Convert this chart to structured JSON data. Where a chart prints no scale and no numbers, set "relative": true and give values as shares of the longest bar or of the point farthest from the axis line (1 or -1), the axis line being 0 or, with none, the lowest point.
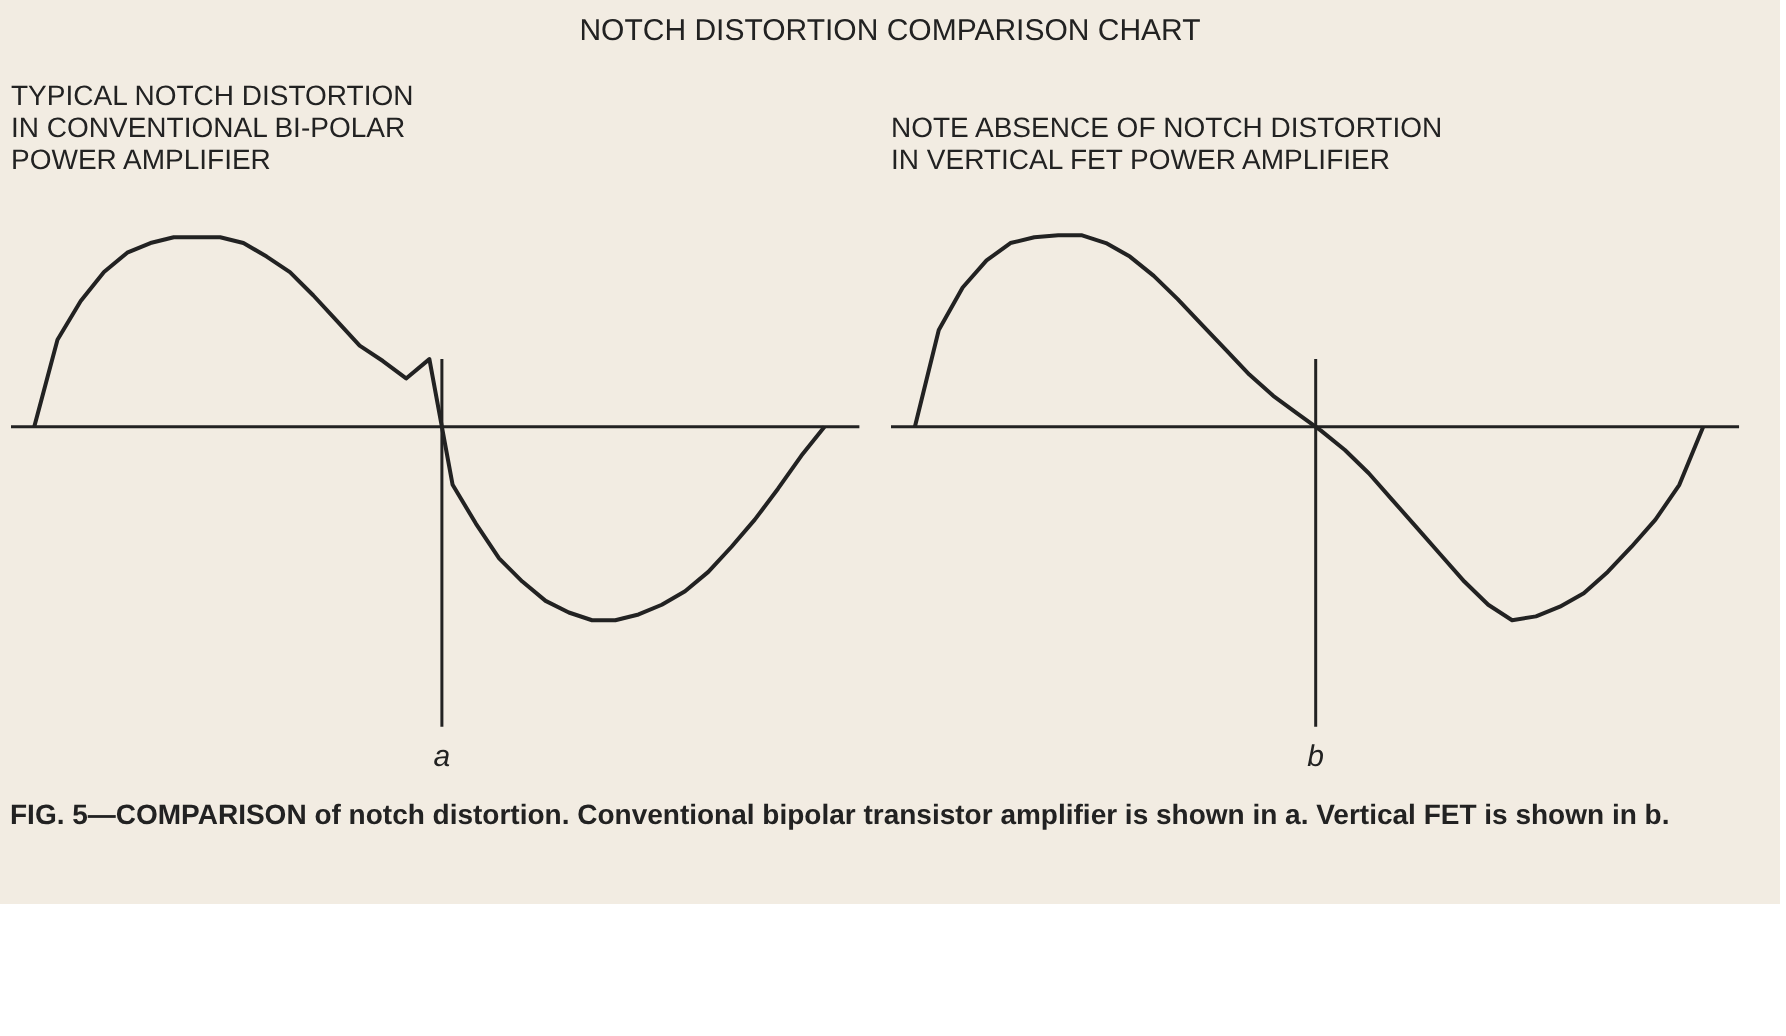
{
  "chart_data": [
    {
      "type": "line",
      "relative": true,
      "title": "NOTCH DISTORTION COMPARISON CHART",
      "subtitle": "TYPICAL NOTCH DISTORTION\nIN CONVENTIONAL BI-POLAR\nPOWER AMPLIFIER",
      "categories": [
        null,
        null,
        null,
        null,
        null,
        null,
        null,
        null,
        null,
        null,
        null,
        null,
        null,
        null,
        null,
        null,
        null,
        null,
        null,
        null,
        null,
        null,
        null,
        null,
        null,
        null,
        null,
        null,
        null,
        null,
        null,
        null,
        null,
        null,
        null
      ],
      "series": [
        {
          "color": "#222222",
          "values": [
            0,
            0.45,
            0.65,
            0.8,
            0.9,
            0.95,
            0.98,
            0.98,
            0.98,
            0.95,
            0.88,
            0.8,
            0.68,
            0.55,
            0.42,
            0.34,
            0.25,
            0.35,
            -0.3,
            -0.5,
            -0.68,
            -0.8,
            -0.9,
            -0.96,
            -1,
            -1,
            -0.97,
            -0.92,
            -0.85,
            -0.75,
            -0.62,
            -0.48,
            -0.32,
            -0.15,
            0
          ]
        }
      ],
      "annotations": [
        "a",
        "FIG. 5—COMPARISON of notch distortion. Conventional bipolar transistor amplifier is shown in a. Vertical FET is shown in b."
      ]
    },
    {
      "type": "line",
      "relative": true,
      "subtitle": "NOTE ABSENCE OF NOTCH DISTORTION\nIN VERTICAL FET POWER AMPLIFIER",
      "categories": [
        null,
        null,
        null,
        null,
        null,
        null,
        null,
        null,
        null,
        null,
        null,
        null,
        null,
        null,
        null,
        null,
        null,
        null,
        null,
        null,
        null,
        null,
        null,
        null,
        null,
        null,
        null,
        null,
        null,
        null,
        null,
        null,
        null,
        null
      ],
      "series": [
        {
          "color": "#222222",
          "values": [
            0,
            0.5,
            0.72,
            0.86,
            0.95,
            0.98,
            0.99,
            0.99,
            0.95,
            0.88,
            0.78,
            0.66,
            0.53,
            0.4,
            0.27,
            0.16,
            0.07,
            -0.02,
            -0.12,
            -0.24,
            -0.38,
            -0.52,
            -0.66,
            -0.8,
            -0.92,
            -1,
            -0.98,
            -0.93,
            -0.86,
            -0.75,
            -0.62,
            -0.48,
            -0.3,
            0
          ]
        }
      ],
      "annotations": [
        "b"
      ]
    }
  ]
}
